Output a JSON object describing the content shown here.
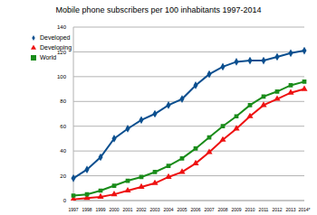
{
  "chart_data": {
    "type": "line",
    "title": "Mobile phone subscribers per 100 inhabitants 1997-2014",
    "categories": [
      "1997",
      "1998",
      "1999",
      "2000",
      "2001",
      "2002",
      "2003",
      "2004",
      "2005",
      "2006",
      "2007",
      "2008",
      "2009",
      "2010",
      "2011",
      "2012",
      "2013",
      "2014*"
    ],
    "series": [
      {
        "name": "Developed",
        "color": "#0b4f8f",
        "marker": "diamond",
        "values": [
          18,
          25,
          35,
          50,
          58,
          65,
          70,
          77,
          82,
          93,
          102,
          108,
          112,
          113,
          113,
          116,
          119,
          121
        ]
      },
      {
        "name": "Developing",
        "color": "#ee1111",
        "marker": "triangle",
        "values": [
          1,
          2,
          3,
          5,
          8,
          11,
          14,
          19,
          23,
          30,
          39,
          49,
          58,
          68,
          77,
          82,
          87,
          90
        ]
      },
      {
        "name": "World",
        "color": "#1a8c1a",
        "marker": "square",
        "values": [
          4,
          5,
          8,
          12,
          16,
          19,
          23,
          28,
          34,
          42,
          51,
          60,
          68,
          77,
          84,
          88,
          93,
          96
        ]
      }
    ],
    "ylim": [
      0,
      140
    ],
    "yticks": [
      0,
      20,
      40,
      60,
      80,
      100,
      120,
      140
    ],
    "grid": true,
    "legend": "top-left"
  }
}
